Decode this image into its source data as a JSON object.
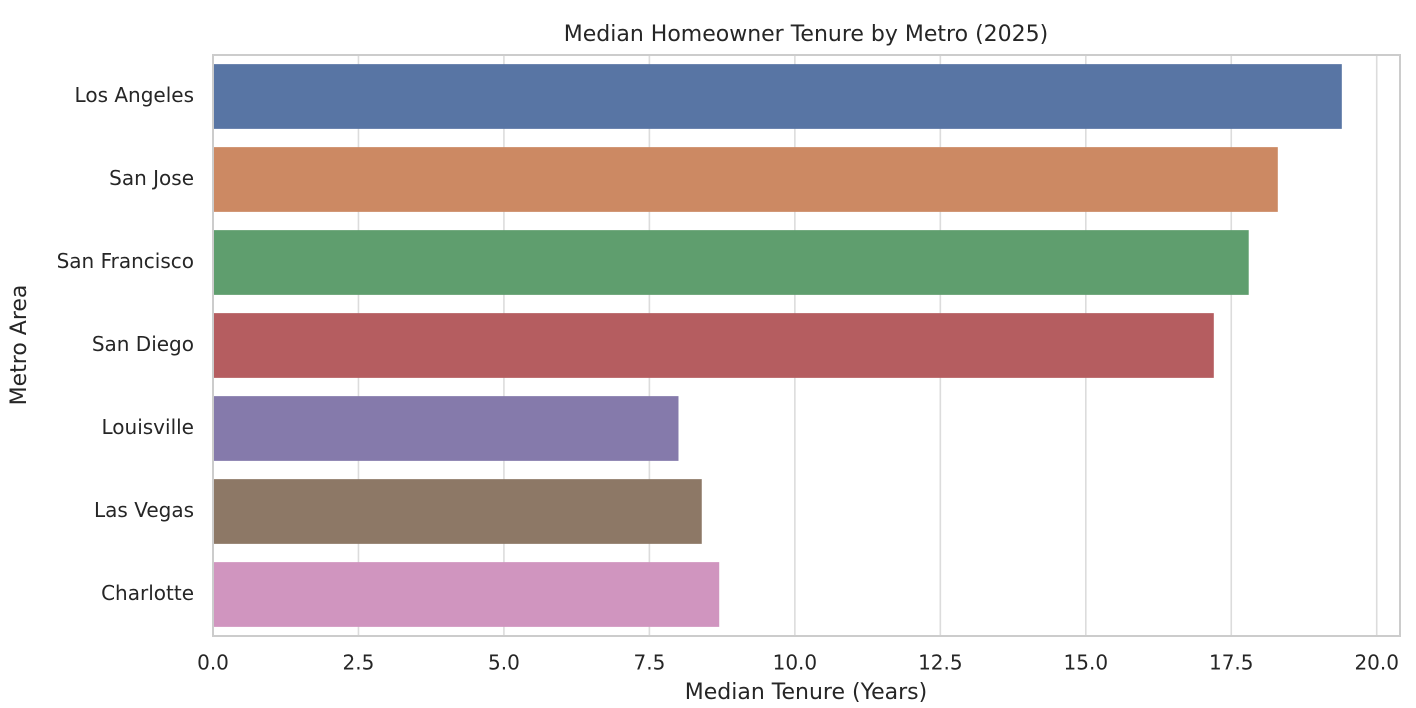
{
  "chart_data": {
    "type": "bar",
    "orientation": "horizontal",
    "title": "Median Homeowner Tenure by Metro (2025)",
    "x_label": "Median Tenure (Years)",
    "y_label": "Metro Area",
    "categories": [
      "Los Angeles",
      "San Jose",
      "San Francisco",
      "San Diego",
      "Louisville",
      "Las Vegas",
      "Charlotte"
    ],
    "values": [
      19.4,
      18.3,
      17.8,
      17.2,
      8.0,
      8.4,
      8.7
    ],
    "colors": [
      "#5875a4",
      "#cc8963",
      "#5f9e6e",
      "#b55d60",
      "#857aab",
      "#8d7866",
      "#d095bf"
    ],
    "xlim": [
      0,
      20.4
    ],
    "xticks": [
      {
        "value": 0,
        "label": "0.0"
      },
      2.5,
      {
        "value": 5,
        "label": "5.0"
      },
      7.5,
      {
        "value": 10,
        "label": "10.0"
      },
      12.5,
      {
        "value": 15,
        "label": "15.0"
      },
      17.5,
      {
        "value": 20,
        "label": "20.0"
      }
    ],
    "grid": true
  }
}
